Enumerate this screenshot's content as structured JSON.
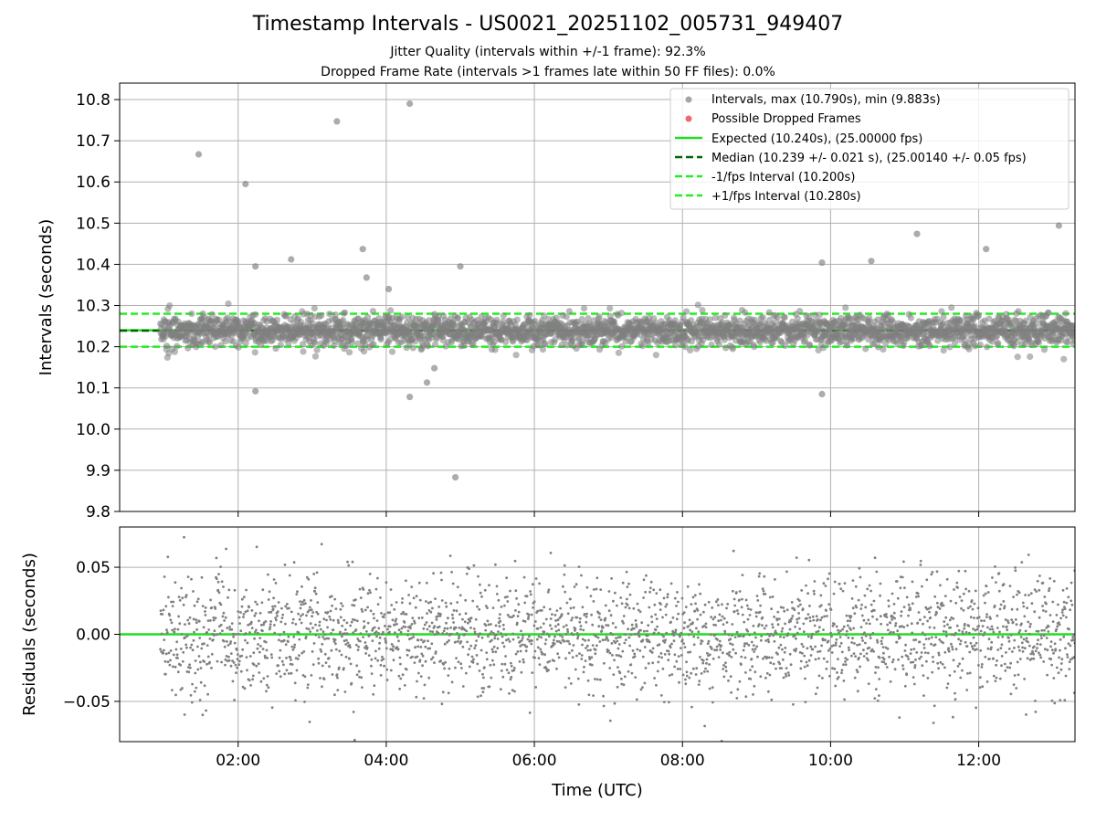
{
  "figure": {
    "title": "Timestamp Intervals - US0021_20251102_005731_949407",
    "subtitle_jitter": "Jitter Quality (intervals within +/-1 frame): 92.3%",
    "subtitle_dropped": "Dropped Frame Rate (intervals >1 frames late within 50 FF files): 0.0%"
  },
  "colors": {
    "scatter": "#808080",
    "dropped": "#e8383d",
    "expected": "#22dd22",
    "median": "#006400",
    "fps_bounds": "#22ee22",
    "grid": "#b0b0b0"
  },
  "chart_data": [
    {
      "type": "scatter",
      "panel": "intervals",
      "ylabel": "Intervals (seconds)",
      "xlabel": "",
      "ylim": [
        9.8,
        10.84
      ],
      "xlim": [
        "00:24",
        "13:18"
      ],
      "y_ticks": [
        "9.8",
        "9.9",
        "10.0",
        "10.1",
        "10.2",
        "10.3",
        "10.4",
        "10.5",
        "10.6",
        "10.7",
        "10.8"
      ],
      "grid": true,
      "legend_position": "top-right",
      "legend": [
        "Intervals, max (10.790s), min (9.883s)",
        "Possible Dropped Frames",
        "Expected (10.240s), (25.00000 fps)",
        "Median (10.239 +/- 0.021 s), (25.00140 +/- 0.05 fps)",
        "-1/fps Interval (10.200s)",
        "+1/fps Interval (10.280s)"
      ],
      "reference_lines": {
        "expected": 10.24,
        "median": 10.239,
        "minus_one_fps": 10.2,
        "plus_one_fps": 10.28
      },
      "data_range": {
        "start": "00:57",
        "end": "13:18",
        "median": 10.239,
        "std": 0.021
      },
      "outliers": [
        {
          "x": "01:28",
          "y": 10.667
        },
        {
          "x": "02:06",
          "y": 10.595
        },
        {
          "x": "02:14",
          "y": 10.395
        },
        {
          "x": "02:14",
          "y": 10.092
        },
        {
          "x": "02:43",
          "y": 10.412
        },
        {
          "x": "03:20",
          "y": 10.747
        },
        {
          "x": "03:41",
          "y": 10.437
        },
        {
          "x": "03:44",
          "y": 10.368
        },
        {
          "x": "04:02",
          "y": 10.34
        },
        {
          "x": "04:19",
          "y": 10.79
        },
        {
          "x": "04:19",
          "y": 10.078
        },
        {
          "x": "04:33",
          "y": 10.113
        },
        {
          "x": "04:39",
          "y": 10.148
        },
        {
          "x": "04:56",
          "y": 9.883
        },
        {
          "x": "05:00",
          "y": 10.395
        },
        {
          "x": "09:53",
          "y": 10.404
        },
        {
          "x": "09:53",
          "y": 10.085
        },
        {
          "x": "10:33",
          "y": 10.408
        },
        {
          "x": "11:10",
          "y": 10.474
        },
        {
          "x": "12:06",
          "y": 10.437
        },
        {
          "x": "13:05",
          "y": 10.494
        }
      ]
    },
    {
      "type": "scatter",
      "panel": "residuals",
      "ylabel": "Residuals (seconds)",
      "xlabel": "Time (UTC)",
      "ylim": [
        -0.08,
        0.08
      ],
      "xlim": [
        "00:24",
        "13:18"
      ],
      "y_ticks": [
        "0.05",
        "0.00",
        "−0.05"
      ],
      "x_ticks": [
        "02:00",
        "04:00",
        "06:00",
        "08:00",
        "10:00",
        "12:00"
      ],
      "grid": true,
      "reference_line": 0.0,
      "data_range": {
        "start": "00:57",
        "end": "13:18",
        "center": 0.0,
        "std": 0.021
      }
    }
  ]
}
